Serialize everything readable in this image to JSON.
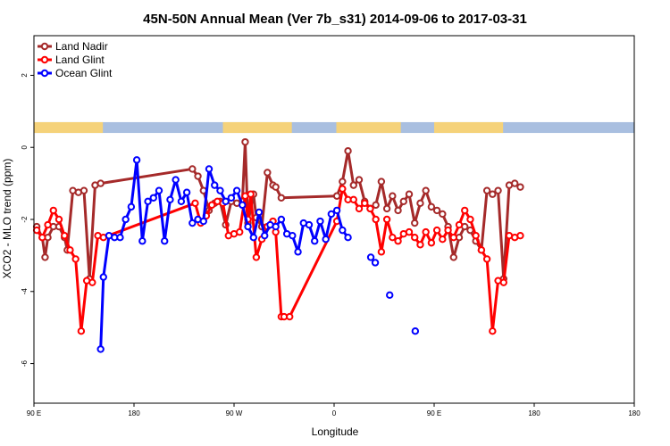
{
  "chart_data": {
    "type": "line",
    "title": "45N-50N Annual Mean (Ver 7b_s31)   2014-09-06 to 2017-03-31",
    "xlabel": "Longitude",
    "ylabel": "XCO2 - MLO trend (ppm)",
    "xlim": [
      0,
      540
    ],
    "ylim": [
      -7.1,
      3.1
    ],
    "x_ticks": [
      {
        "x": 0,
        "label": "90 E"
      },
      {
        "x": 90,
        "label": "180"
      },
      {
        "x": 180,
        "label": "90 W"
      },
      {
        "x": 270,
        "label": "0"
      },
      {
        "x": 360,
        "label": "90 E"
      },
      {
        "x": 450,
        "label": "180"
      }
    ],
    "y_ticks": [
      {
        "y": 2,
        "label": "2"
      },
      {
        "y": 0,
        "label": "0"
      },
      {
        "y": -2,
        "label": "-2"
      },
      {
        "y": -4,
        "label": "-4"
      },
      {
        "y": -6,
        "label": "-6"
      }
    ],
    "land_strip": {
      "y_range": [
        0.4,
        0.7
      ],
      "land_color": "#f5d27a",
      "ocean_color": "#a9bfe0"
    },
    "legend_position": "top-left",
    "series": [
      {
        "name": "Land Nadir",
        "color": "#a52a2a",
        "x": [
          2.5,
          7.5,
          10,
          12.5,
          17.5,
          22.5,
          27.5,
          30,
          35,
          40,
          45,
          50,
          55,
          60,
          142.5,
          147.5,
          152.5,
          157.5,
          162.5,
          167.5,
          172.5,
          177.5,
          182.5,
          187.5,
          190,
          192.5,
          197.5,
          200,
          205,
          210,
          215,
          217.5,
          222.5,
          272.5,
          277.5,
          282.5,
          287.5,
          292.5,
          297.5,
          302.5,
          307.5,
          312.5,
          317.5,
          322.5,
          327.5,
          332.5,
          337.5,
          342.5,
          347.5,
          352.5,
          357.5,
          362.5,
          367.5,
          372.5,
          377.5,
          382.5,
          387.5,
          392.5,
          397.5,
          402.5,
          407.5,
          412.5,
          417.5,
          422.5,
          427.5,
          432.5,
          437.5
        ],
        "y": [
          -2.2,
          -2.5,
          -3.05,
          -2.5,
          -2.2,
          -2.2,
          -2.5,
          -2.85,
          -1.2,
          -1.25,
          -1.2,
          -3.65,
          -1.05,
          -1.0,
          -0.6,
          -0.8,
          -1.2,
          -1.75,
          -1.55,
          -1.5,
          -2.15,
          -1.5,
          -1.55,
          -1.5,
          0.15,
          -2.1,
          -1.3,
          -1.95,
          -2.2,
          -0.7,
          -1.05,
          -1.1,
          -1.4,
          -1.35,
          -0.95,
          -0.1,
          -1.05,
          -0.9,
          -1.5,
          -1.7,
          -1.6,
          -0.95,
          -1.7,
          -1.35,
          -1.75,
          -1.5,
          -1.3,
          -2.1,
          -1.55,
          -1.2,
          -1.65,
          -1.75,
          -1.85,
          -2.2,
          -3.05,
          -2.5,
          -2.2,
          -2.3,
          -2.6,
          -2.85,
          -1.2,
          -1.3,
          -1.2,
          -3.65,
          -1.05,
          -1.0,
          -1.1
        ]
      },
      {
        "name": "Land Glint",
        "color": "#ff0000",
        "x": [
          2.5,
          7.5,
          12.5,
          17.5,
          22.5,
          27.5,
          32.5,
          37.5,
          42.5,
          47.5,
          52.5,
          57.5,
          62.5,
          145,
          150,
          155,
          160,
          165,
          170,
          175,
          180,
          185,
          190,
          192.5,
          195,
          200,
          205,
          210,
          215,
          217.5,
          222.5,
          225,
          230,
          272.5,
          277.5,
          282.5,
          287.5,
          292.5,
          297.5,
          302.5,
          307.5,
          312.5,
          317.5,
          322.5,
          327.5,
          332.5,
          337.5,
          342.5,
          347.5,
          352.5,
          357.5,
          362.5,
          367.5,
          372.5,
          377.5,
          382.5,
          387.5,
          392.5,
          397.5,
          402.5,
          407.5,
          412.5,
          417.5,
          422.5,
          427.5,
          432.5,
          437.5
        ],
        "y": [
          -2.3,
          -2.5,
          -2.15,
          -1.75,
          -2.0,
          -2.45,
          -2.85,
          -3.1,
          -5.1,
          -3.7,
          -3.75,
          -2.45,
          -2.5,
          -1.55,
          -2.1,
          -1.9,
          -1.6,
          -1.5,
          -1.55,
          -2.45,
          -2.4,
          -2.35,
          -1.35,
          -2.0,
          -1.3,
          -3.05,
          -2.55,
          -2.2,
          -2.05,
          -2.35,
          -4.7,
          -4.7,
          -4.7,
          -2.05,
          -1.15,
          -1.45,
          -1.45,
          -1.7,
          -1.55,
          -1.7,
          -2.0,
          -2.9,
          -2.0,
          -2.5,
          -2.6,
          -2.4,
          -2.35,
          -2.5,
          -2.7,
          -2.35,
          -2.65,
          -2.3,
          -2.55,
          -2.3,
          -2.5,
          -2.15,
          -1.75,
          -2.0,
          -2.45,
          -2.85,
          -3.1,
          -5.1,
          -3.7,
          -3.75,
          -2.45,
          -2.5,
          -2.45
        ]
      },
      {
        "name": "Ocean Glint",
        "color": "#0000ff",
        "x": [
          60,
          62.5,
          67.5,
          72.5,
          77.5,
          82.5,
          87.5,
          92.5,
          97.5,
          102.5,
          107.5,
          112.5,
          117.5,
          122.5,
          127.5,
          132.5,
          137.5,
          142.5,
          147.5,
          152.5,
          157.5,
          162.5,
          167.5,
          172.5,
          177.5,
          182.5,
          187.5,
          192.5,
          197.5,
          202.5,
          207.5,
          212.5,
          217.5,
          222.5,
          227.5,
          232.5,
          237.5,
          242.5,
          247.5,
          252.5,
          257.5,
          262.5,
          267.5,
          272.5,
          277.5,
          282.5
        ],
        "y": [
          -5.6,
          -3.6,
          -2.45,
          -2.5,
          -2.5,
          -2.0,
          -1.65,
          -0.35,
          -2.6,
          -1.5,
          -1.4,
          -1.2,
          -2.6,
          -1.45,
          -0.9,
          -1.5,
          -1.25,
          -2.1,
          -2.0,
          -2.05,
          -0.6,
          -1.05,
          -1.2,
          -1.5,
          -1.4,
          -1.2,
          -1.6,
          -2.2,
          -2.5,
          -1.8,
          -2.45,
          -2.15,
          -2.2,
          -2.0,
          -2.4,
          -2.45,
          -2.9,
          -2.1,
          -2.15,
          -2.6,
          -2.05,
          -2.55,
          -1.85,
          -1.75,
          -2.3,
          -2.5
        ],
        "points_only_x": [
          303,
          307,
          320,
          343
        ],
        "points_only_y": [
          -3.05,
          -3.2,
          -4.1,
          -5.1
        ]
      }
    ]
  }
}
